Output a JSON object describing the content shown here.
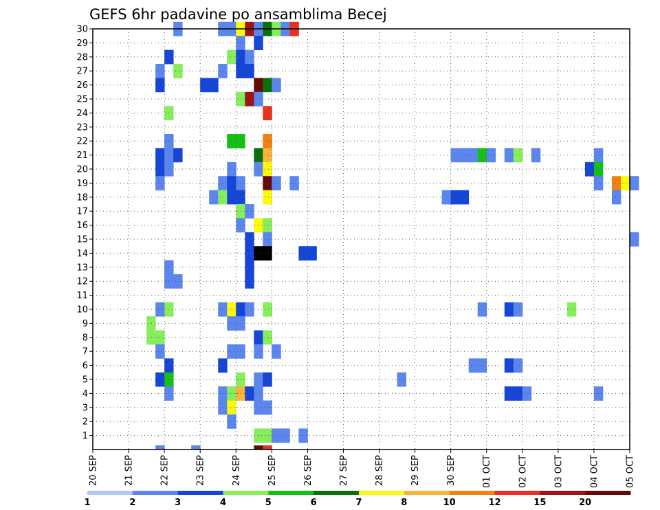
{
  "chart_data": {
    "type": "heatmap",
    "title": "GEFS 6hr padavine po ansamblima Becej",
    "xlabel": "",
    "ylabel": "",
    "x_tick_labels": [
      "20 SEP",
      "21 SEP",
      "22 SEP",
      "23 SEP",
      "24 SEP",
      "25 SEP",
      "26 SEP",
      "27 SEP",
      "28 SEP",
      "29 SEP",
      "30 SEP",
      "01 OCT",
      "02 OCT",
      "03 OCT",
      "04 OCT",
      "05 OCT"
    ],
    "x_range_days": [
      0,
      15
    ],
    "y_tick_labels": [
      "1",
      "2",
      "3",
      "4",
      "5",
      "6",
      "7",
      "8",
      "9",
      "10",
      "11",
      "12",
      "13",
      "14",
      "15",
      "16",
      "17",
      "18",
      "19",
      "20",
      "21",
      "22",
      "23",
      "24",
      "25",
      "26",
      "27",
      "28",
      "29",
      "30"
    ],
    "y_range": [
      0,
      30
    ],
    "grid": "dotted",
    "colorbar": {
      "labels": [
        "1",
        "2",
        "3",
        "4",
        "5",
        "6",
        "7",
        "8",
        "10",
        "12",
        "15",
        "20"
      ],
      "colors": [
        "#b4c6fa",
        "#5a86ee",
        "#1646d8",
        "#86ee5a",
        "#14c014",
        "#0a700a",
        "#fafa0a",
        "#fab43c",
        "#f08214",
        "#e6321e",
        "#a01414",
        "#640a0a"
      ]
    },
    "cells": [
      [
        30,
        2.25,
        1
      ],
      [
        30,
        3.5,
        1
      ],
      [
        30,
        3.75,
        1
      ],
      [
        30,
        4.0,
        6
      ],
      [
        30,
        4.25,
        10
      ],
      [
        30,
        4.5,
        1
      ],
      [
        30,
        4.75,
        5
      ],
      [
        30,
        5.0,
        3
      ],
      [
        30,
        5.25,
        1
      ],
      [
        30,
        5.5,
        9
      ],
      [
        29,
        4.0,
        1
      ],
      [
        29,
        4.5,
        2
      ],
      [
        28,
        2.0,
        2
      ],
      [
        28,
        3.75,
        3
      ],
      [
        28,
        4.0,
        2
      ],
      [
        28,
        4.25,
        1
      ],
      [
        27,
        1.75,
        1
      ],
      [
        27,
        2.25,
        3
      ],
      [
        27,
        3.5,
        1
      ],
      [
        27,
        4.0,
        2
      ],
      [
        27,
        4.25,
        2
      ],
      [
        26,
        1.75,
        2
      ],
      [
        26,
        3.0,
        2
      ],
      [
        26,
        3.25,
        2
      ],
      [
        26,
        4.5,
        11
      ],
      [
        26,
        4.75,
        5
      ],
      [
        26,
        5.0,
        1
      ],
      [
        25,
        4.0,
        3
      ],
      [
        25,
        4.25,
        10
      ],
      [
        25,
        4.5,
        1
      ],
      [
        24,
        2.0,
        3
      ],
      [
        24,
        4.75,
        9
      ],
      [
        22,
        2.0,
        1
      ],
      [
        22,
        3.75,
        4
      ],
      [
        22,
        4.0,
        4
      ],
      [
        22,
        4.75,
        8
      ],
      [
        21,
        1.75,
        2
      ],
      [
        21,
        2.0,
        1
      ],
      [
        21,
        2.25,
        2
      ],
      [
        21,
        4.5,
        5
      ],
      [
        21,
        4.75,
        7
      ],
      [
        21,
        10.0,
        1
      ],
      [
        21,
        10.25,
        1
      ],
      [
        21,
        10.5,
        1
      ],
      [
        21,
        10.75,
        4
      ],
      [
        21,
        11.0,
        1
      ],
      [
        21,
        11.5,
        1
      ],
      [
        21,
        11.75,
        3
      ],
      [
        21,
        12.25,
        1
      ],
      [
        21,
        14.0,
        1
      ],
      [
        20,
        1.75,
        2
      ],
      [
        20,
        2.0,
        1
      ],
      [
        20,
        3.75,
        1
      ],
      [
        20,
        4.5,
        1
      ],
      [
        20,
        4.75,
        6
      ],
      [
        20,
        13.75,
        2
      ],
      [
        20,
        14.0,
        4
      ],
      [
        19,
        1.75,
        1
      ],
      [
        19,
        3.5,
        1
      ],
      [
        19,
        3.75,
        2
      ],
      [
        19,
        4.0,
        1
      ],
      [
        19,
        4.75,
        11
      ],
      [
        19,
        5.0,
        1
      ],
      [
        19,
        5.5,
        1
      ],
      [
        19,
        14.0,
        1
      ],
      [
        19,
        14.5,
        8
      ],
      [
        19,
        14.75,
        6
      ],
      [
        19,
        15.0,
        1
      ],
      [
        18,
        3.25,
        1
      ],
      [
        18,
        3.5,
        3
      ],
      [
        18,
        3.75,
        2
      ],
      [
        18,
        4.0,
        2
      ],
      [
        18,
        4.75,
        6
      ],
      [
        18,
        9.75,
        1
      ],
      [
        18,
        10.0,
        2
      ],
      [
        18,
        10.25,
        2
      ],
      [
        18,
        14.5,
        1
      ],
      [
        17,
        4.0,
        3
      ],
      [
        17,
        4.25,
        1
      ],
      [
        16,
        4.0,
        1
      ],
      [
        16,
        4.5,
        6
      ],
      [
        16,
        4.75,
        3
      ],
      [
        15,
        4.25,
        2
      ],
      [
        15,
        4.75,
        1
      ],
      [
        15,
        15.0,
        1
      ],
      [
        14,
        4.25,
        2
      ],
      [
        14,
        4.5,
        12
      ],
      [
        14,
        4.75,
        12
      ],
      [
        14,
        5.75,
        2
      ],
      [
        14,
        6.0,
        2
      ],
      [
        13,
        2.0,
        1
      ],
      [
        13,
        4.25,
        2
      ],
      [
        12,
        2.0,
        1
      ],
      [
        12,
        2.25,
        1
      ],
      [
        12,
        4.25,
        2
      ],
      [
        10,
        1.75,
        1
      ],
      [
        10,
        2.0,
        3
      ],
      [
        10,
        3.5,
        1
      ],
      [
        10,
        3.75,
        6
      ],
      [
        10,
        4.0,
        2
      ],
      [
        10,
        4.25,
        1
      ],
      [
        10,
        4.75,
        3
      ],
      [
        10,
        10.75,
        1
      ],
      [
        10,
        11.5,
        2
      ],
      [
        10,
        11.75,
        1
      ],
      [
        10,
        13.25,
        3
      ],
      [
        9,
        1.5,
        3
      ],
      [
        9,
        3.75,
        1
      ],
      [
        9,
        4.0,
        1
      ],
      [
        8,
        1.5,
        3
      ],
      [
        8,
        1.75,
        3
      ],
      [
        8,
        4.5,
        2
      ],
      [
        8,
        4.75,
        3
      ],
      [
        7,
        1.75,
        1
      ],
      [
        7,
        3.75,
        1
      ],
      [
        7,
        4.0,
        1
      ],
      [
        7,
        4.5,
        1
      ],
      [
        7,
        5.0,
        1
      ],
      [
        6,
        2.0,
        2
      ],
      [
        6,
        3.5,
        2
      ],
      [
        6,
        10.5,
        1
      ],
      [
        6,
        10.75,
        1
      ],
      [
        6,
        11.5,
        2
      ],
      [
        6,
        11.75,
        1
      ],
      [
        5,
        1.75,
        2
      ],
      [
        5,
        2.0,
        4
      ],
      [
        5,
        4.0,
        3
      ],
      [
        5,
        4.5,
        1
      ],
      [
        5,
        4.75,
        2
      ],
      [
        5,
        8.5,
        1
      ],
      [
        4,
        2.0,
        1
      ],
      [
        4,
        3.5,
        1
      ],
      [
        4,
        3.75,
        3
      ],
      [
        4,
        4.0,
        7
      ],
      [
        4,
        4.25,
        2
      ],
      [
        4,
        4.5,
        1
      ],
      [
        4,
        11.5,
        2
      ],
      [
        4,
        11.75,
        2
      ],
      [
        4,
        12.0,
        1
      ],
      [
        4,
        14.0,
        1
      ],
      [
        3,
        3.5,
        1
      ],
      [
        3,
        3.75,
        6
      ],
      [
        3,
        4.5,
        1
      ],
      [
        3,
        4.75,
        1
      ],
      [
        2,
        3.75,
        1
      ],
      [
        1,
        4.5,
        3
      ],
      [
        1,
        4.75,
        3
      ],
      [
        1,
        5.0,
        1
      ],
      [
        1,
        5.25,
        1
      ],
      [
        1,
        5.75,
        1
      ],
      [
        0,
        1.75,
        1
      ],
      [
        0,
        2.75,
        1
      ],
      [
        0,
        4.5,
        11
      ],
      [
        0,
        4.75,
        9
      ]
    ]
  }
}
